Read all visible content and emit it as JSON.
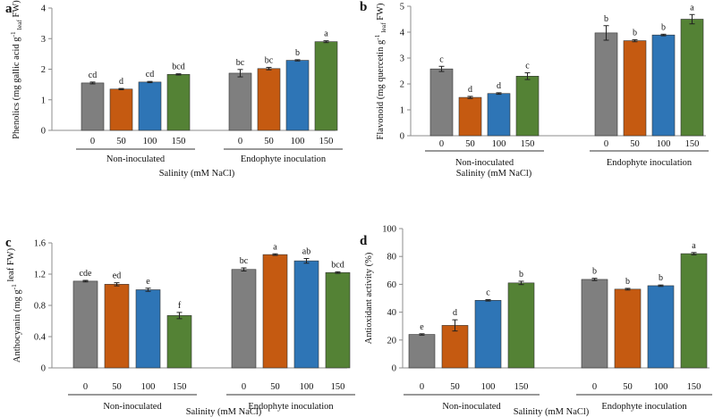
{
  "figure": {
    "series_colors": [
      "#7f7f7f",
      "#c55a11",
      "#2e75b6",
      "#548235"
    ],
    "group_labels": [
      "Non-inoculated",
      "Endophyte inoculation"
    ],
    "salinity_label": "Salinity (mM NaCl)"
  },
  "chart_data": [
    {
      "panel": "a",
      "type": "bar",
      "ylabel": "Phenolics  (mg gallic acid g",
      "ylabel_sup": "-1",
      "ylabel_sub": " leaf",
      "ylabel_tail": " FW)",
      "ylim": [
        0,
        4
      ],
      "yticks": [
        "0",
        "1",
        "2",
        "3",
        "4"
      ],
      "categories": [
        "0",
        "50",
        "100",
        "150"
      ],
      "groups": [
        "Non-inoculated",
        "Endophyte inoculation"
      ],
      "series": [
        {
          "group": "Non-inoculated",
          "values": [
            1.55,
            1.35,
            1.58,
            1.83
          ],
          "errors": [
            0.03,
            0.02,
            0.02,
            0.02
          ],
          "letters": [
            "cd",
            "d",
            "cd",
            "bcd"
          ]
        },
        {
          "group": "Endophyte inoculation",
          "values": [
            1.87,
            2.02,
            2.29,
            2.9
          ],
          "errors": [
            0.12,
            0.04,
            0.02,
            0.03
          ],
          "letters": [
            "bc",
            "bc",
            "b",
            "a"
          ]
        }
      ]
    },
    {
      "panel": "b",
      "type": "bar",
      "ylabel": "Flavonoid (mg quercetin g",
      "ylabel_sup": "-1",
      "ylabel_sub": " leaf",
      "ylabel_tail": " FW)",
      "ylim": [
        0,
        5
      ],
      "yticks": [
        "0",
        "1",
        "2",
        "3",
        "4",
        "5"
      ],
      "categories": [
        "0",
        "50",
        "100",
        "150"
      ],
      "groups": [
        "Non-inoculated",
        "Endophyte inoculation"
      ],
      "series": [
        {
          "group": "Non-inoculated",
          "values": [
            2.58,
            1.48,
            1.63,
            2.3
          ],
          "errors": [
            0.1,
            0.04,
            0.03,
            0.13
          ],
          "letters": [
            "c",
            "d",
            "d",
            "c"
          ]
        },
        {
          "group": "Endophyte inoculation",
          "values": [
            3.97,
            3.67,
            3.89,
            4.5
          ],
          "errors": [
            0.28,
            0.04,
            0.03,
            0.18
          ],
          "letters": [
            "b",
            "b",
            "b",
            "a"
          ]
        }
      ]
    },
    {
      "panel": "c",
      "type": "bar",
      "ylabel": "Anthocyanin (mg g",
      "ylabel_sup": "-1",
      "ylabel_sub": "",
      "ylabel_tail": " leaf FW)",
      "ylim": [
        0,
        1.6
      ],
      "yticks": [
        "0",
        "0.4",
        "0.8",
        "1.2",
        "1.6"
      ],
      "categories": [
        "0",
        "50",
        "100",
        "150"
      ],
      "groups": [
        "Non-inoculated",
        "Endophyte inoculation"
      ],
      "series": [
        {
          "group": "Non-inoculated",
          "values": [
            1.11,
            1.07,
            1.0,
            0.67
          ],
          "errors": [
            0.01,
            0.02,
            0.02,
            0.04
          ],
          "letters": [
            "cde",
            "ed",
            "e",
            "f"
          ]
        },
        {
          "group": "Endophyte inoculation",
          "values": [
            1.26,
            1.45,
            1.37,
            1.22
          ],
          "errors": [
            0.02,
            0.01,
            0.03,
            0.01
          ],
          "letters": [
            "bc",
            "a",
            "ab",
            "bcd"
          ]
        }
      ]
    },
    {
      "panel": "d",
      "type": "bar",
      "ylabel": "Antioxidant activity (%)",
      "ylabel_sup": "",
      "ylabel_sub": "",
      "ylabel_tail": "",
      "ylim": [
        0,
        100
      ],
      "yticks": [
        "0",
        "20",
        "40",
        "60",
        "80",
        "100"
      ],
      "categories": [
        "0",
        "50",
        "100",
        "150"
      ],
      "groups": [
        "Non-inoculated",
        "Endophyte inoculation"
      ],
      "series": [
        {
          "group": "Non-inoculated",
          "values": [
            24.0,
            30.5,
            48.5,
            61.0
          ],
          "errors": [
            0.5,
            4.0,
            0.5,
            1.2
          ],
          "letters": [
            "e",
            "d",
            "c",
            "b"
          ]
        },
        {
          "group": "Endophyte inoculation",
          "values": [
            63.5,
            56.5,
            59.0,
            82.0
          ],
          "errors": [
            0.8,
            0.6,
            0.5,
            0.8
          ],
          "letters": [
            "b",
            "b",
            "b",
            "a"
          ]
        }
      ]
    }
  ]
}
